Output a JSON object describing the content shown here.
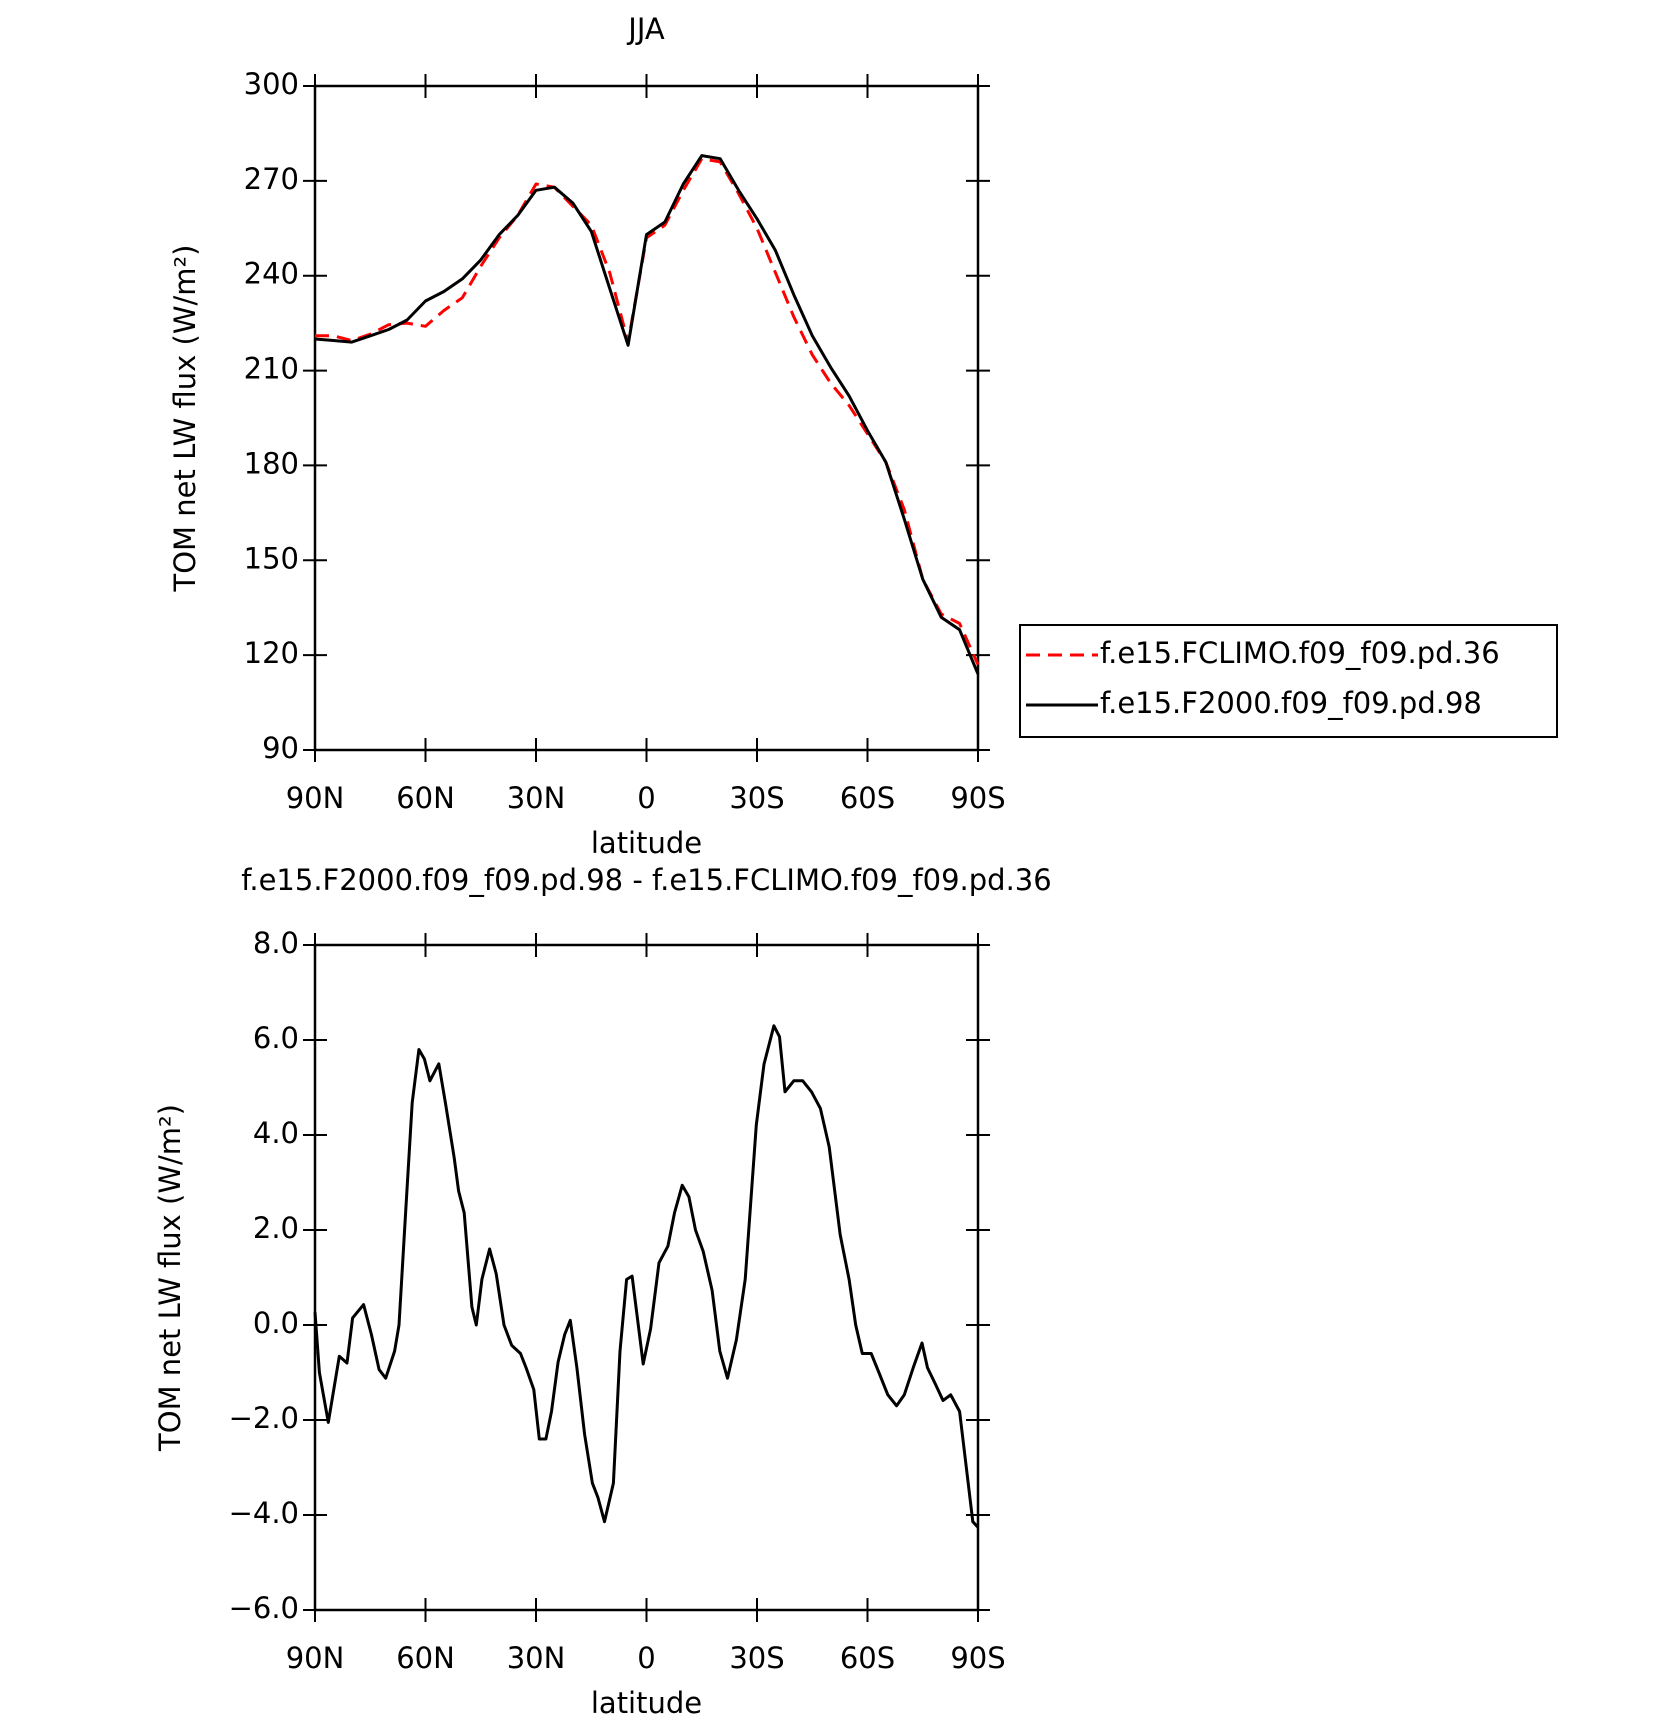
{
  "chart_data": [
    {
      "type": "line",
      "title": "JJA",
      "x_label": "latitude",
      "y_label": "TOM net LW flux (W/m²)",
      "x": [
        90,
        85,
        80,
        75,
        70,
        65,
        60,
        55,
        50,
        45,
        40,
        35,
        30,
        25,
        20,
        15,
        10,
        5,
        0,
        -5,
        -10,
        -15,
        -20,
        -25,
        -30,
        -35,
        -40,
        -45,
        -50,
        -55,
        -60,
        -65,
        -70,
        -75,
        -80,
        -85,
        -90
      ],
      "series": [
        {
          "name": "f.e15.FCLIMO.f09_f09.pd.36",
          "color": "#ff0000",
          "linestyle": "dashed",
          "values": [
            221,
            221,
            219.5,
            221.5,
            224.5,
            225,
            224,
            229,
            233,
            243,
            252,
            259,
            269,
            268,
            262,
            256,
            241,
            219,
            252,
            256,
            267,
            277,
            276,
            266,
            255,
            241,
            227,
            215,
            206,
            199,
            190,
            181,
            166,
            144,
            133,
            130,
            117
          ]
        },
        {
          "name": "f.e15.F2000.f09_f09.pd.98",
          "color": "#000000",
          "linestyle": "solid",
          "values": [
            220,
            219.5,
            219,
            221,
            223,
            226,
            232,
            235,
            239,
            245,
            253,
            259,
            267,
            268,
            263,
            254,
            236,
            218,
            253,
            257,
            269,
            278,
            277,
            267,
            258,
            248,
            234,
            221,
            211,
            202,
            191,
            181,
            163,
            144,
            132,
            128,
            114
          ]
        }
      ],
      "xlim": [
        90,
        -90
      ],
      "xticks": [
        {
          "value": 90,
          "label": "90N"
        },
        {
          "value": 60,
          "label": "60N"
        },
        {
          "value": 30,
          "label": "30N"
        },
        0,
        {
          "value": -30,
          "label": "30S"
        },
        {
          "value": -60,
          "label": "60S"
        },
        {
          "value": -90,
          "label": "90S"
        }
      ],
      "ylim": [
        90,
        300
      ],
      "yticks": [
        90,
        120,
        150,
        180,
        210,
        240,
        270,
        300
      ],
      "legend": "outside-right",
      "grid": false
    },
    {
      "type": "line",
      "title": "f.e15.F2000.f09_f09.pd.98 - f.e15.FCLIMO.f09_f09.pd.36",
      "x_label": "latitude",
      "y_label": "TOM net LW flux (W/m²)",
      "x": [
        90,
        88.8,
        86.4,
        83.4,
        81.3,
        79.8,
        76.8,
        74.7,
        72.6,
        70.8,
        68.4,
        67.2,
        65.4,
        63.6,
        61.8,
        60.3,
        58.8,
        56.4,
        54.6,
        52.2,
        51,
        49.5,
        47.4,
        46.2,
        44.7,
        42.6,
        40.8,
        38.7,
        36.6,
        34.2,
        32.7,
        30.6,
        29.1,
        27.3,
        25.8,
        24,
        22.2,
        20.7,
        18.9,
        16.8,
        14.7,
        13.2,
        11.4,
        9,
        7.2,
        5.4,
        3.9,
        0.9,
        -1.1,
        -3.4,
        -5.8,
        -7.6,
        -9.7,
        -11.5,
        -13.3,
        -15.4,
        -17.8,
        -19.9,
        -22,
        -24.4,
        -26.8,
        -29.8,
        -31.9,
        -34.6,
        -36.1,
        -37.6,
        -40,
        -42.4,
        -44.8,
        -47.2,
        -49.6,
        -52.6,
        -55,
        -56.8,
        -58.6,
        -61,
        -63.1,
        -65.5,
        -67.9,
        -70,
        -72.4,
        -74.8,
        -76.3,
        -78.4,
        -80.5,
        -82.6,
        -85,
        -86.8,
        -88.6,
        -90
      ],
      "series": [
        {
          "name": null,
          "color": "#000000",
          "linestyle": "solid",
          "values": [
            0.27,
            -1.0,
            -2.05,
            -0.66,
            -0.8,
            0.15,
            0.43,
            -0.2,
            -0.94,
            -1.12,
            -0.55,
            0,
            2.36,
            4.68,
            5.8,
            5.6,
            5.14,
            5.5,
            4.68,
            3.52,
            2.82,
            2.36,
            0.38,
            0,
            0.96,
            1.6,
            1.08,
            0,
            -0.43,
            -0.6,
            -0.9,
            -1.36,
            -2.4,
            -2.4,
            -1.82,
            -0.78,
            -0.2,
            0.1,
            -0.9,
            -2.3,
            -3.33,
            -3.63,
            -4.14,
            -3.33,
            -0.55,
            0.96,
            1.03,
            -0.82,
            -0.08,
            1.31,
            1.66,
            2.36,
            2.94,
            2.7,
            2.0,
            1.55,
            0.73,
            -0.55,
            -1.12,
            -0.31,
            0.96,
            4.21,
            5.49,
            6.3,
            6.07,
            4.91,
            5.14,
            5.14,
            4.91,
            4.56,
            3.75,
            1.9,
            0.96,
            0,
            -0.6,
            -0.6,
            -1.0,
            -1.47,
            -1.7,
            -1.47,
            -0.9,
            -0.38,
            -0.9,
            -1.24,
            -1.59,
            -1.47,
            -1.82,
            -2.98,
            -4.14,
            -4.26
          ]
        }
      ],
      "xlim": [
        90,
        -90
      ],
      "xticks": [
        {
          "value": 90,
          "label": "90N"
        },
        {
          "value": 60,
          "label": "60N"
        },
        {
          "value": 30,
          "label": "30N"
        },
        0,
        {
          "value": -30,
          "label": "30S"
        },
        {
          "value": -60,
          "label": "60S"
        },
        {
          "value": -90,
          "label": "90S"
        }
      ],
      "ylim": [
        -6,
        8
      ],
      "yticks": [
        {
          "value": -6,
          "label": "−6.0"
        },
        {
          "value": -4,
          "label": "−4.0"
        },
        {
          "value": -2,
          "label": "−2.0"
        },
        {
          "value": 0,
          "label": "0.0"
        },
        {
          "value": 2,
          "label": "2.0"
        },
        {
          "value": 4,
          "label": "4.0"
        },
        {
          "value": 6,
          "label": "6.0"
        },
        {
          "value": 8,
          "label": "8.0"
        }
      ],
      "grid": false
    }
  ]
}
